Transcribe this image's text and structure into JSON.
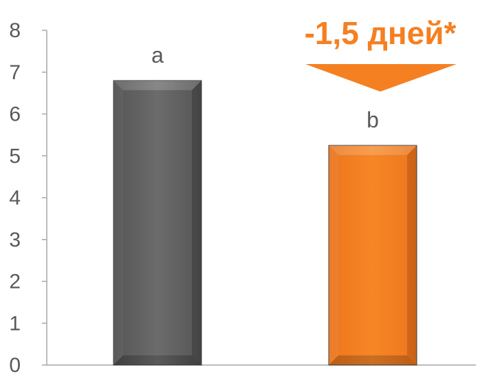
{
  "chart_data": {
    "type": "bar",
    "categories": [
      "",
      ""
    ],
    "values": [
      6.8,
      5.25
    ],
    "bar_labels": [
      "a",
      "b"
    ],
    "bar_colors": [
      "#666666",
      "#f58021"
    ],
    "ylim": [
      0,
      8
    ],
    "yticks": [
      "0",
      "1",
      "2",
      "3",
      "4",
      "5",
      "6",
      "7",
      "8"
    ],
    "title": "",
    "xlabel": "",
    "ylabel": "",
    "grid": false,
    "legend": "none",
    "annotations": [
      {
        "text": "-1,5 дней*",
        "color": "#f58021",
        "arrow": "down",
        "target_bar": 1
      }
    ]
  }
}
